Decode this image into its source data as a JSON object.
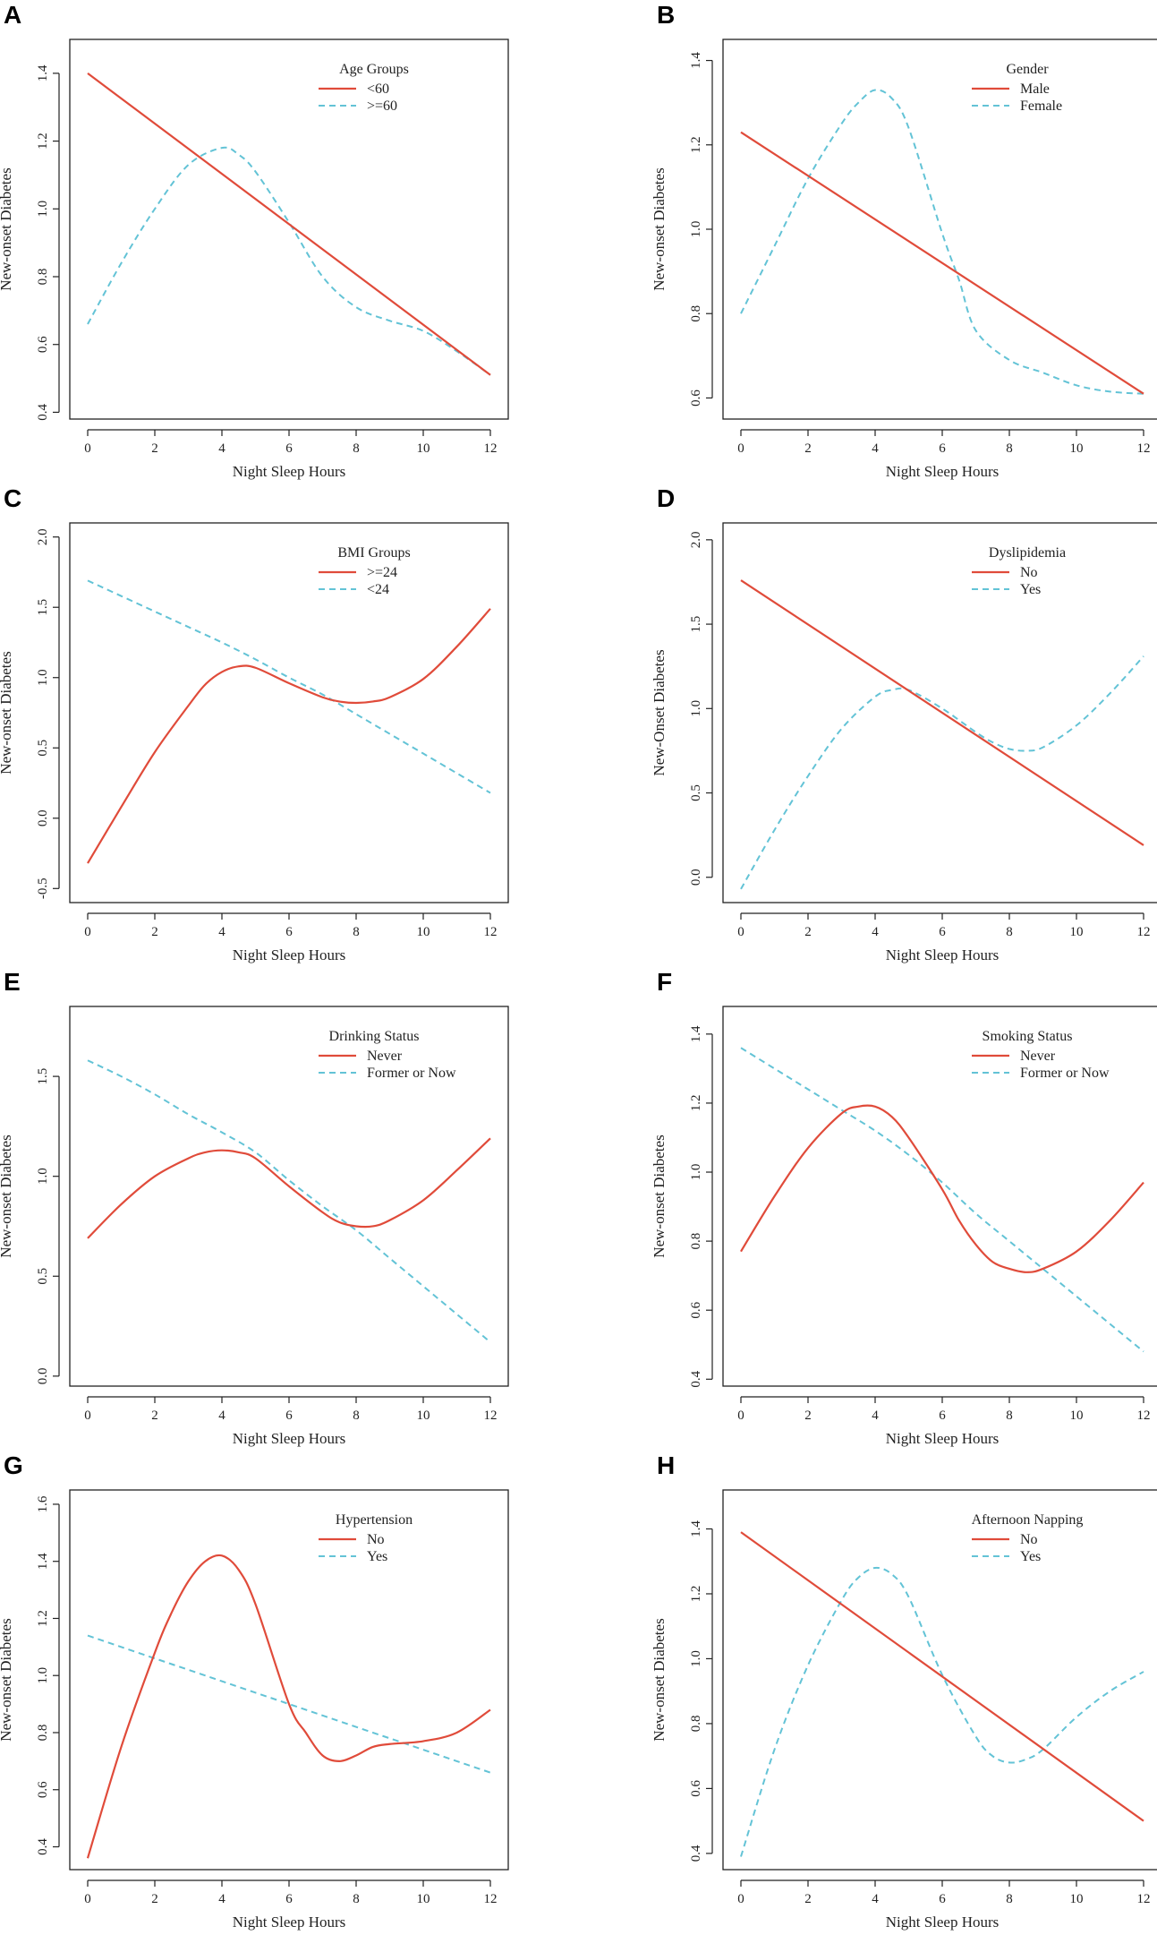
{
  "figure_name": "night-sleep-hours-subgroup-curves",
  "colors": {
    "solid": "#e04b3a",
    "dashed": "#63c3d6",
    "axis": "#222222"
  },
  "chart_data": [
    {
      "type": "line",
      "panel_label": "A",
      "xlabel": "Night Sleep Hours",
      "ylabel": "New-onset Diabetes",
      "xlim": [
        0,
        12
      ],
      "ylim": [
        0.38,
        1.5
      ],
      "xticks": [
        0,
        2,
        4,
        6,
        8,
        10,
        12
      ],
      "xtick_labels": [
        "0",
        "2",
        "4",
        "6",
        "8",
        "10",
        "12"
      ],
      "yticks": [
        0.4,
        0.6,
        0.8,
        1.0,
        1.2,
        1.4
      ],
      "ytick_labels": [
        "0.4",
        "0.6",
        "0.8",
        "1.0",
        "1.2",
        "1.4"
      ],
      "legend_title": "Age Groups",
      "series": [
        {
          "name": "<60",
          "style": "solid",
          "x": [
            0,
            12
          ],
          "y": [
            1.4,
            0.51
          ]
        },
        {
          "name": ">=60",
          "style": "dashed",
          "x": [
            0,
            1,
            2,
            3,
            4,
            4.5,
            5,
            6,
            7,
            8,
            9,
            10,
            11,
            12
          ],
          "y": [
            0.66,
            0.84,
            1.0,
            1.13,
            1.18,
            1.16,
            1.11,
            0.96,
            0.8,
            0.71,
            0.67,
            0.64,
            0.58,
            0.51
          ]
        }
      ]
    },
    {
      "type": "line",
      "panel_label": "B",
      "xlabel": "Night Sleep Hours",
      "ylabel": "New-onset Diabetes",
      "xlim": [
        0,
        12
      ],
      "ylim": [
        0.55,
        1.45
      ],
      "xticks": [
        0,
        2,
        4,
        6,
        8,
        10,
        12
      ],
      "xtick_labels": [
        "0",
        "2",
        "4",
        "6",
        "8",
        "10",
        "12"
      ],
      "yticks": [
        0.6,
        0.8,
        1.0,
        1.2,
        1.4
      ],
      "ytick_labels": [
        "0.6",
        "0.8",
        "1.0",
        "1.2",
        "1.4"
      ],
      "legend_title": "Gender",
      "series": [
        {
          "name": "Male",
          "style": "solid",
          "x": [
            0,
            12
          ],
          "y": [
            1.23,
            0.61
          ]
        },
        {
          "name": "Female",
          "style": "dashed",
          "x": [
            0,
            1,
            2,
            3,
            3.5,
            4,
            4.5,
            5,
            6,
            6.5,
            7,
            8,
            9,
            10,
            11,
            12
          ],
          "y": [
            0.8,
            0.96,
            1.12,
            1.25,
            1.3,
            1.33,
            1.31,
            1.24,
            0.99,
            0.88,
            0.76,
            0.69,
            0.66,
            0.63,
            0.615,
            0.61
          ]
        }
      ]
    },
    {
      "type": "line",
      "panel_label": "C",
      "xlabel": "Night Sleep Hours",
      "ylabel": "New-onset Diabetes",
      "xlim": [
        0,
        12
      ],
      "ylim": [
        -0.6,
        2.1
      ],
      "xticks": [
        0,
        2,
        4,
        6,
        8,
        10,
        12
      ],
      "xtick_labels": [
        "0",
        "2",
        "4",
        "6",
        "8",
        "10",
        "12"
      ],
      "yticks": [
        -0.5,
        0.0,
        0.5,
        1.0,
        1.5,
        2.0
      ],
      "ytick_labels": [
        "-0.5",
        "0.0",
        "0.5",
        "1.0",
        "1.5",
        "2.0"
      ],
      "legend_title": "BMI Groups",
      "series": [
        {
          "name": ">=24",
          "style": "solid",
          "x": [
            0,
            1,
            2,
            3,
            3.5,
            4,
            4.5,
            5,
            6,
            7,
            7.5,
            8,
            8.5,
            9,
            10,
            11,
            12
          ],
          "y": [
            -0.32,
            0.08,
            0.47,
            0.8,
            0.95,
            1.04,
            1.08,
            1.07,
            0.96,
            0.86,
            0.83,
            0.82,
            0.83,
            0.86,
            0.99,
            1.22,
            1.49
          ]
        },
        {
          "name": "<24",
          "style": "dashed",
          "x": [
            0,
            1,
            2,
            3,
            4,
            5,
            6,
            7,
            8,
            9,
            10,
            11,
            12
          ],
          "y": [
            1.69,
            1.58,
            1.47,
            1.36,
            1.25,
            1.13,
            1.0,
            0.88,
            0.74,
            0.6,
            0.46,
            0.32,
            0.18
          ]
        }
      ]
    },
    {
      "type": "line",
      "panel_label": "D",
      "xlabel": "Night Sleep Hours",
      "ylabel": "New-Onset Diabetes",
      "xlim": [
        0,
        12
      ],
      "ylim": [
        -0.15,
        2.1
      ],
      "xticks": [
        0,
        2,
        4,
        6,
        8,
        10,
        12
      ],
      "xtick_labels": [
        "0",
        "2",
        "4",
        "6",
        "8",
        "10",
        "12"
      ],
      "yticks": [
        0.0,
        0.5,
        1.0,
        1.5,
        2.0
      ],
      "ytick_labels": [
        "0.0",
        "0.5",
        "1.0",
        "1.5",
        "2.0"
      ],
      "legend_title": "Dyslipidemia",
      "series": [
        {
          "name": "No",
          "style": "solid",
          "x": [
            0,
            12
          ],
          "y": [
            1.76,
            0.19
          ]
        },
        {
          "name": "Yes",
          "style": "dashed",
          "x": [
            0,
            1,
            2,
            3,
            4,
            4.5,
            5,
            6,
            7,
            7.5,
            8,
            8.5,
            9,
            10,
            11,
            12
          ],
          "y": [
            -0.07,
            0.28,
            0.6,
            0.88,
            1.07,
            1.11,
            1.11,
            1.0,
            0.86,
            0.8,
            0.76,
            0.75,
            0.77,
            0.9,
            1.09,
            1.31
          ]
        }
      ]
    },
    {
      "type": "line",
      "panel_label": "E",
      "xlabel": "Night Sleep Hours",
      "ylabel": "New-onset Diabetes",
      "xlim": [
        0,
        12
      ],
      "ylim": [
        -0.05,
        1.85
      ],
      "xticks": [
        0,
        2,
        4,
        6,
        8,
        10,
        12
      ],
      "xtick_labels": [
        "0",
        "2",
        "4",
        "6",
        "8",
        "10",
        "12"
      ],
      "yticks": [
        0.0,
        0.5,
        1.0,
        1.5
      ],
      "ytick_labels": [
        "0.0",
        "0.5",
        "1.0",
        "1.5"
      ],
      "legend_title": "Drinking Status",
      "series": [
        {
          "name": "Never",
          "style": "solid",
          "x": [
            0,
            1,
            2,
            3,
            3.5,
            4,
            4.5,
            5,
            6,
            7,
            7.5,
            8,
            8.5,
            9,
            10,
            11,
            12
          ],
          "y": [
            0.69,
            0.86,
            1.0,
            1.09,
            1.12,
            1.13,
            1.12,
            1.09,
            0.95,
            0.82,
            0.77,
            0.75,
            0.75,
            0.78,
            0.88,
            1.03,
            1.19
          ]
        },
        {
          "name": "Former or Now",
          "style": "dashed",
          "x": [
            0,
            1,
            2,
            3,
            4,
            5,
            6,
            7,
            8,
            9,
            10,
            11,
            12
          ],
          "y": [
            1.58,
            1.5,
            1.41,
            1.31,
            1.22,
            1.12,
            0.98,
            0.85,
            0.73,
            0.59,
            0.45,
            0.31,
            0.17
          ]
        }
      ]
    },
    {
      "type": "line",
      "panel_label": "F",
      "xlabel": "Night Sleep Hours",
      "ylabel": "New-onset Diabetes",
      "xlim": [
        0,
        12
      ],
      "ylim": [
        0.38,
        1.48
      ],
      "xticks": [
        0,
        2,
        4,
        6,
        8,
        10,
        12
      ],
      "xtick_labels": [
        "0",
        "2",
        "4",
        "6",
        "8",
        "10",
        "12"
      ],
      "yticks": [
        0.4,
        0.6,
        0.8,
        1.0,
        1.2,
        1.4
      ],
      "ytick_labels": [
        "0.4",
        "0.6",
        "0.8",
        "1.0",
        "1.2",
        "1.4"
      ],
      "legend_title": "Smoking Status",
      "series": [
        {
          "name": "Never",
          "style": "solid",
          "x": [
            0,
            1,
            2,
            3,
            3.5,
            4,
            4.5,
            5,
            6,
            6.5,
            7,
            7.5,
            8,
            8.5,
            9,
            10,
            11,
            12
          ],
          "y": [
            0.77,
            0.93,
            1.07,
            1.17,
            1.19,
            1.19,
            1.16,
            1.1,
            0.95,
            0.86,
            0.79,
            0.74,
            0.72,
            0.71,
            0.72,
            0.77,
            0.86,
            0.97
          ]
        },
        {
          "name": "Former or Now",
          "style": "dashed",
          "x": [
            0,
            1,
            2,
            3,
            4,
            5,
            6,
            7,
            8,
            9,
            10,
            11,
            12
          ],
          "y": [
            1.36,
            1.3,
            1.24,
            1.18,
            1.12,
            1.05,
            0.97,
            0.88,
            0.8,
            0.72,
            0.64,
            0.56,
            0.48
          ]
        }
      ]
    },
    {
      "type": "line",
      "panel_label": "G",
      "xlabel": "Night Sleep Hours",
      "ylabel": "New-onset Diabetes",
      "xlim": [
        0,
        12
      ],
      "ylim": [
        0.32,
        1.65
      ],
      "xticks": [
        0,
        2,
        4,
        6,
        8,
        10,
        12
      ],
      "xtick_labels": [
        "0",
        "2",
        "4",
        "6",
        "8",
        "10",
        "12"
      ],
      "yticks": [
        0.4,
        0.6,
        0.8,
        1.0,
        1.2,
        1.4,
        1.6
      ],
      "ytick_labels": [
        "0.4",
        "0.6",
        "0.8",
        "1.0",
        "1.2",
        "1.4",
        "1.6"
      ],
      "legend_title": "Hypertension",
      "series": [
        {
          "name": "No",
          "style": "solid",
          "x": [
            0,
            1,
            2,
            2.5,
            3,
            3.5,
            4,
            4.5,
            5,
            6,
            6.5,
            7,
            7.5,
            8,
            8.5,
            9,
            10,
            11,
            12
          ],
          "y": [
            0.36,
            0.75,
            1.08,
            1.22,
            1.33,
            1.4,
            1.42,
            1.37,
            1.25,
            0.9,
            0.8,
            0.72,
            0.7,
            0.72,
            0.75,
            0.76,
            0.77,
            0.8,
            0.88
          ]
        },
        {
          "name": "Yes",
          "style": "dashed",
          "x": [
            0,
            12
          ],
          "y": [
            1.14,
            0.66
          ]
        }
      ]
    },
    {
      "type": "line",
      "panel_label": "H",
      "xlabel": "Night Sleep Hours",
      "ylabel": "New-onset Diabetes",
      "xlim": [
        0,
        12
      ],
      "ylim": [
        0.35,
        1.52
      ],
      "xticks": [
        0,
        2,
        4,
        6,
        8,
        10,
        12
      ],
      "xtick_labels": [
        "0",
        "2",
        "4",
        "6",
        "8",
        "10",
        "12"
      ],
      "yticks": [
        0.4,
        0.6,
        0.8,
        1.0,
        1.2,
        1.4
      ],
      "ytick_labels": [
        "0.4",
        "0.6",
        "0.8",
        "1.0",
        "1.2",
        "1.4"
      ],
      "legend_title": "Afternoon Napping",
      "series": [
        {
          "name": "No",
          "style": "solid",
          "x": [
            0,
            12
          ],
          "y": [
            1.39,
            0.5
          ]
        },
        {
          "name": "Yes",
          "style": "dashed",
          "x": [
            0,
            1,
            2,
            3,
            3.5,
            4,
            4.5,
            5,
            6,
            7,
            7.5,
            8,
            8.5,
            9,
            10,
            11,
            12
          ],
          "y": [
            0.39,
            0.72,
            0.98,
            1.18,
            1.25,
            1.28,
            1.26,
            1.19,
            0.95,
            0.76,
            0.7,
            0.68,
            0.69,
            0.72,
            0.82,
            0.9,
            0.96
          ]
        }
      ]
    }
  ]
}
